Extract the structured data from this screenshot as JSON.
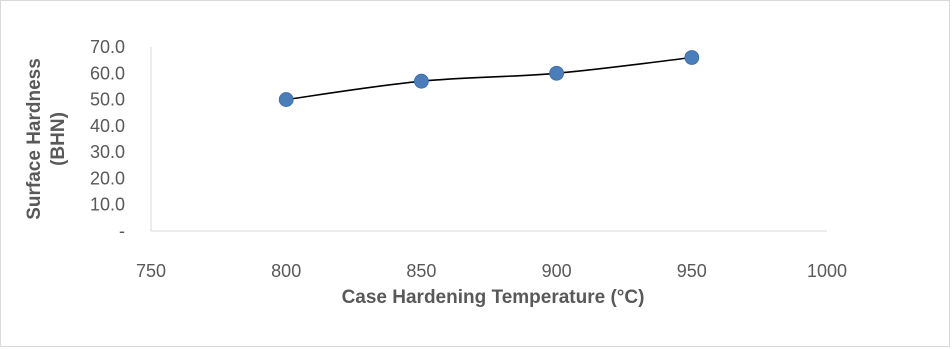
{
  "chart_data": {
    "type": "scatter",
    "title": "",
    "xlabel": "Case Hardening  Temperature (°C)",
    "ylabel_lines": [
      "Surface Hardness",
      "(BHN)"
    ],
    "xlim": [
      750,
      1000
    ],
    "ylim": [
      0,
      70
    ],
    "x_ticks": [
      "750",
      "800",
      "850",
      "900",
      "950",
      "1000"
    ],
    "y_ticks": [
      "-",
      "10.0",
      "20.0",
      "30.0",
      "40.0",
      "50.0",
      "60.0",
      "70.0"
    ],
    "grid": false,
    "legend": "none",
    "trendline": "smooth curve through points",
    "series": [
      {
        "x": [
          800,
          850,
          900,
          950
        ],
        "y": [
          50.0,
          57.0,
          60.0,
          66.0
        ],
        "marker_color": "#4a7ebb",
        "line_color": "#000000"
      }
    ]
  }
}
